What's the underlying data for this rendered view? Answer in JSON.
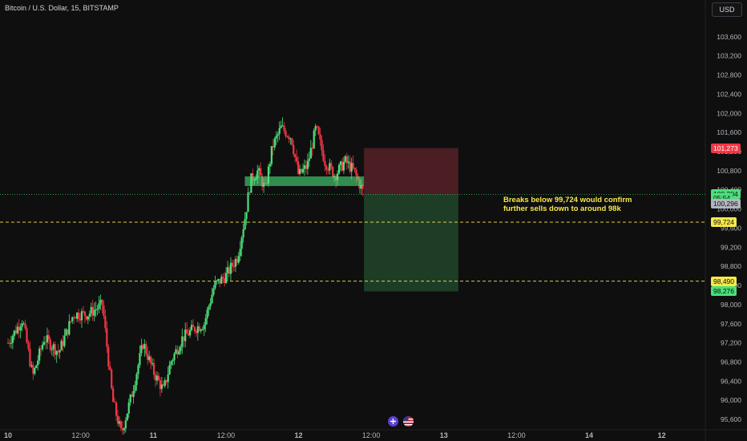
{
  "header": {
    "title": "Bitcoin / U.S. Dollar, 15, BITSTAMP",
    "currency_button": "USD"
  },
  "annotation": {
    "line1": "Breaks below 99,724 would confirm",
    "line2": "further sells down to around 98k"
  },
  "price_badges": [
    {
      "label": "101,273",
      "price": 101273,
      "bg": "#f23645",
      "fg": "#ffffff"
    },
    {
      "label": "100,304",
      "price": 100304,
      "bg": "#4be07a",
      "fg": "#0f0f0f"
    },
    {
      "label": "05:54",
      "price": 100220,
      "bg": "#4be07a",
      "fg": "#0f0f0f"
    },
    {
      "label": "100,296",
      "price": 100110,
      "bg": "#b2b5be",
      "fg": "#0f0f0f"
    },
    {
      "label": "99,724",
      "price": 99724,
      "bg": "#f5e94a",
      "fg": "#0f0f0f"
    },
    {
      "label": "98,490",
      "price": 98490,
      "bg": "#f5e94a",
      "fg": "#0f0f0f"
    },
    {
      "label": "98,276",
      "price": 98276,
      "bg": "#4be07a",
      "fg": "#0f0f0f"
    }
  ],
  "colors": {
    "background": "#0f0f0f",
    "up_candle": "#4be07a",
    "down_candle": "#f23645",
    "level_line": "#f5e94a",
    "stop_zone": "#4a1e22",
    "target_zone": "#1e3d27",
    "support_zone": "#4be07a"
  },
  "icons": [
    "plus-circle-icon",
    "us-flag-icon"
  ],
  "chart_data": {
    "type": "candlestick",
    "symbol": "Bitcoin / U.S. Dollar",
    "interval": "15",
    "exchange": "BITSTAMP",
    "y_axis": {
      "range": [
        95400,
        104000
      ],
      "ticks": [
        95600,
        96000,
        96400,
        96800,
        97200,
        97600,
        98000,
        98400,
        98800,
        99200,
        99600,
        100000,
        100400,
        100800,
        101200,
        101600,
        102000,
        102400,
        102800,
        103200,
        103600
      ],
      "tick_labels": [
        "95,600",
        "96,000",
        "96,400",
        "96,800",
        "97,200",
        "97,600",
        "98,000",
        "98,400",
        "98,800",
        "99,200",
        "99,600",
        "100,000",
        "100,400",
        "100,800",
        "101,200",
        "101,600",
        "102,000",
        "102,400",
        "102,800",
        "103,200",
        "103,600"
      ]
    },
    "x_axis": {
      "range": [
        0,
        4.8
      ],
      "ticks": [
        0,
        0.5,
        1,
        1.5,
        2,
        2.5,
        3,
        3.5,
        4,
        4.5
      ],
      "tick_labels": [
        "10",
        "12:00",
        "11",
        "12:00",
        "12",
        "12:00",
        "13",
        "12:00",
        "14",
        "12"
      ]
    },
    "current_price": 100304,
    "horizontal_levels": [
      {
        "price": 99724,
        "style": "dashed",
        "label": "99,724"
      },
      {
        "price": 98490,
        "style": "dashed",
        "label": "98,490"
      }
    ],
    "position": {
      "type": "short",
      "entry": 100304,
      "stop": 101273,
      "target": 98276,
      "x_start": 2.45,
      "x_end": 3.1
    },
    "support_zone": {
      "price_low": 100480,
      "price_high": 100680,
      "x_start": 1.63,
      "x_end": 2.45
    },
    "candles_anchor_path": [
      {
        "x": 0.0,
        "p": 97200
      },
      {
        "x": 0.1,
        "p": 97700
      },
      {
        "x": 0.17,
        "p": 96500
      },
      {
        "x": 0.25,
        "p": 97300
      },
      {
        "x": 0.35,
        "p": 97000
      },
      {
        "x": 0.45,
        "p": 97800
      },
      {
        "x": 0.55,
        "p": 97800
      },
      {
        "x": 0.65,
        "p": 98000
      },
      {
        "x": 0.72,
        "p": 96000
      },
      {
        "x": 0.78,
        "p": 95300
      },
      {
        "x": 0.85,
        "p": 96100
      },
      {
        "x": 0.93,
        "p": 97200
      },
      {
        "x": 1.0,
        "p": 96600
      },
      {
        "x": 1.07,
        "p": 96200
      },
      {
        "x": 1.12,
        "p": 96800
      },
      {
        "x": 1.2,
        "p": 97300
      },
      {
        "x": 1.28,
        "p": 97500
      },
      {
        "x": 1.35,
        "p": 97600
      },
      {
        "x": 1.42,
        "p": 98400
      },
      {
        "x": 1.5,
        "p": 98600
      },
      {
        "x": 1.58,
        "p": 99000
      },
      {
        "x": 1.63,
        "p": 99800
      },
      {
        "x": 1.67,
        "p": 100600
      },
      {
        "x": 1.72,
        "p": 100800
      },
      {
        "x": 1.77,
        "p": 100400
      },
      {
        "x": 1.82,
        "p": 101300
      },
      {
        "x": 1.88,
        "p": 101700
      },
      {
        "x": 1.95,
        "p": 101500
      },
      {
        "x": 2.0,
        "p": 100700
      },
      {
        "x": 2.06,
        "p": 100900
      },
      {
        "x": 2.12,
        "p": 101700
      },
      {
        "x": 2.18,
        "p": 101000
      },
      {
        "x": 2.25,
        "p": 100700
      },
      {
        "x": 2.32,
        "p": 101000
      },
      {
        "x": 2.38,
        "p": 100800
      },
      {
        "x": 2.45,
        "p": 100300
      }
    ]
  }
}
